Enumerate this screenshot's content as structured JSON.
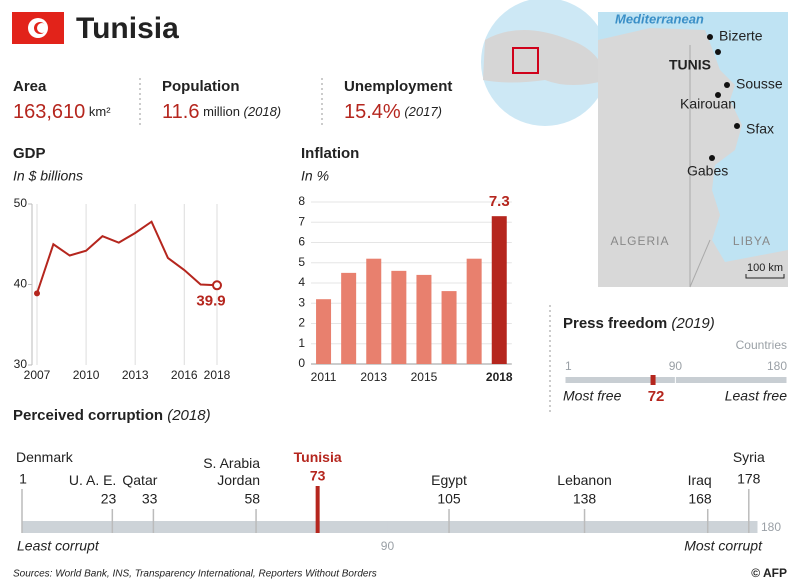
{
  "header": {
    "title": "Tunisia"
  },
  "stats": [
    {
      "label": "Area",
      "value": "163,610",
      "unit": "km²"
    },
    {
      "label": "Population",
      "value": "11.6",
      "unit": "million",
      "note": "(2018)"
    },
    {
      "label": "Unemployment",
      "value": "15.4%",
      "note": "(2017)"
    }
  ],
  "map": {
    "sea": "Mediterranean",
    "cities": [
      "Bizerte",
      "TUNIS",
      "Sousse",
      "Kairouan",
      "Sfax",
      "Gabes"
    ],
    "countries": [
      "ALGERIA",
      "LIBYA"
    ],
    "scale": "100 km"
  },
  "chart_data": [
    {
      "type": "line",
      "title": "GDP",
      "subtitle": "In $ billions",
      "x": [
        2007,
        2008,
        2009,
        2010,
        2011,
        2012,
        2013,
        2014,
        2015,
        2016,
        2017,
        2018
      ],
      "values": [
        38.9,
        45.0,
        43.6,
        44.2,
        46.0,
        45.2,
        46.4,
        47.8,
        43.3,
        41.8,
        40.0,
        39.9
      ],
      "color": "#b5261e",
      "xlim": [
        2007,
        2018
      ],
      "xticks": [
        2007,
        2010,
        2013,
        2016,
        2018
      ],
      "ylim": [
        30,
        50
      ],
      "yticks": [
        30,
        40,
        50
      ]
    },
    {
      "type": "bar",
      "title": "Inflation",
      "subtitle": "In %",
      "categories": [
        "2011",
        null,
        "2013",
        null,
        "2015",
        null,
        null,
        "2018"
      ],
      "values": [
        3.2,
        4.5,
        5.2,
        4.6,
        4.4,
        3.6,
        5.2,
        7.3
      ],
      "colors": [
        "#e8806e",
        "#e8806e",
        "#e8806e",
        "#e8806e",
        "#e8806e",
        "#e8806e",
        "#e8806e",
        "#b5261e"
      ],
      "ylim": [
        0,
        8
      ],
      "yticks": [
        0,
        1,
        2,
        3,
        4,
        5,
        6,
        7,
        8
      ]
    },
    {
      "type": "scale",
      "title": "Press freedom",
      "subtitle": "(2019)",
      "unit": "Countries",
      "value": 72,
      "xlim": [
        1,
        180
      ],
      "xticks": [
        1,
        90,
        180
      ],
      "label_left": "Most free",
      "label_right": "Least free",
      "color": "#b5261e"
    },
    {
      "type": "ranking",
      "title": "Perceived corruption",
      "subtitle": "(2018)",
      "categories": [
        "Denmark",
        "U. A. E.",
        "Qatar",
        "S. Arabia\nJordan",
        "Tunisia",
        "Egypt",
        "Lebanon",
        "Iraq",
        "Syria"
      ],
      "values": [
        1,
        23,
        33,
        58,
        73,
        105,
        138,
        168,
        178
      ],
      "colors": [
        "#666",
        "#666",
        "#666",
        "#666",
        "#b5261e",
        "#666",
        "#666",
        "#666",
        "#666"
      ],
      "xlim": [
        1,
        180
      ],
      "xticks": [
        90,
        180
      ],
      "label_left": "Least corrupt",
      "label_right": "Most corrupt"
    }
  ],
  "footer": {
    "sources": "Sources: World Bank, INS, Transparency International, Reporters Without Borders",
    "credit": "© AFP"
  }
}
